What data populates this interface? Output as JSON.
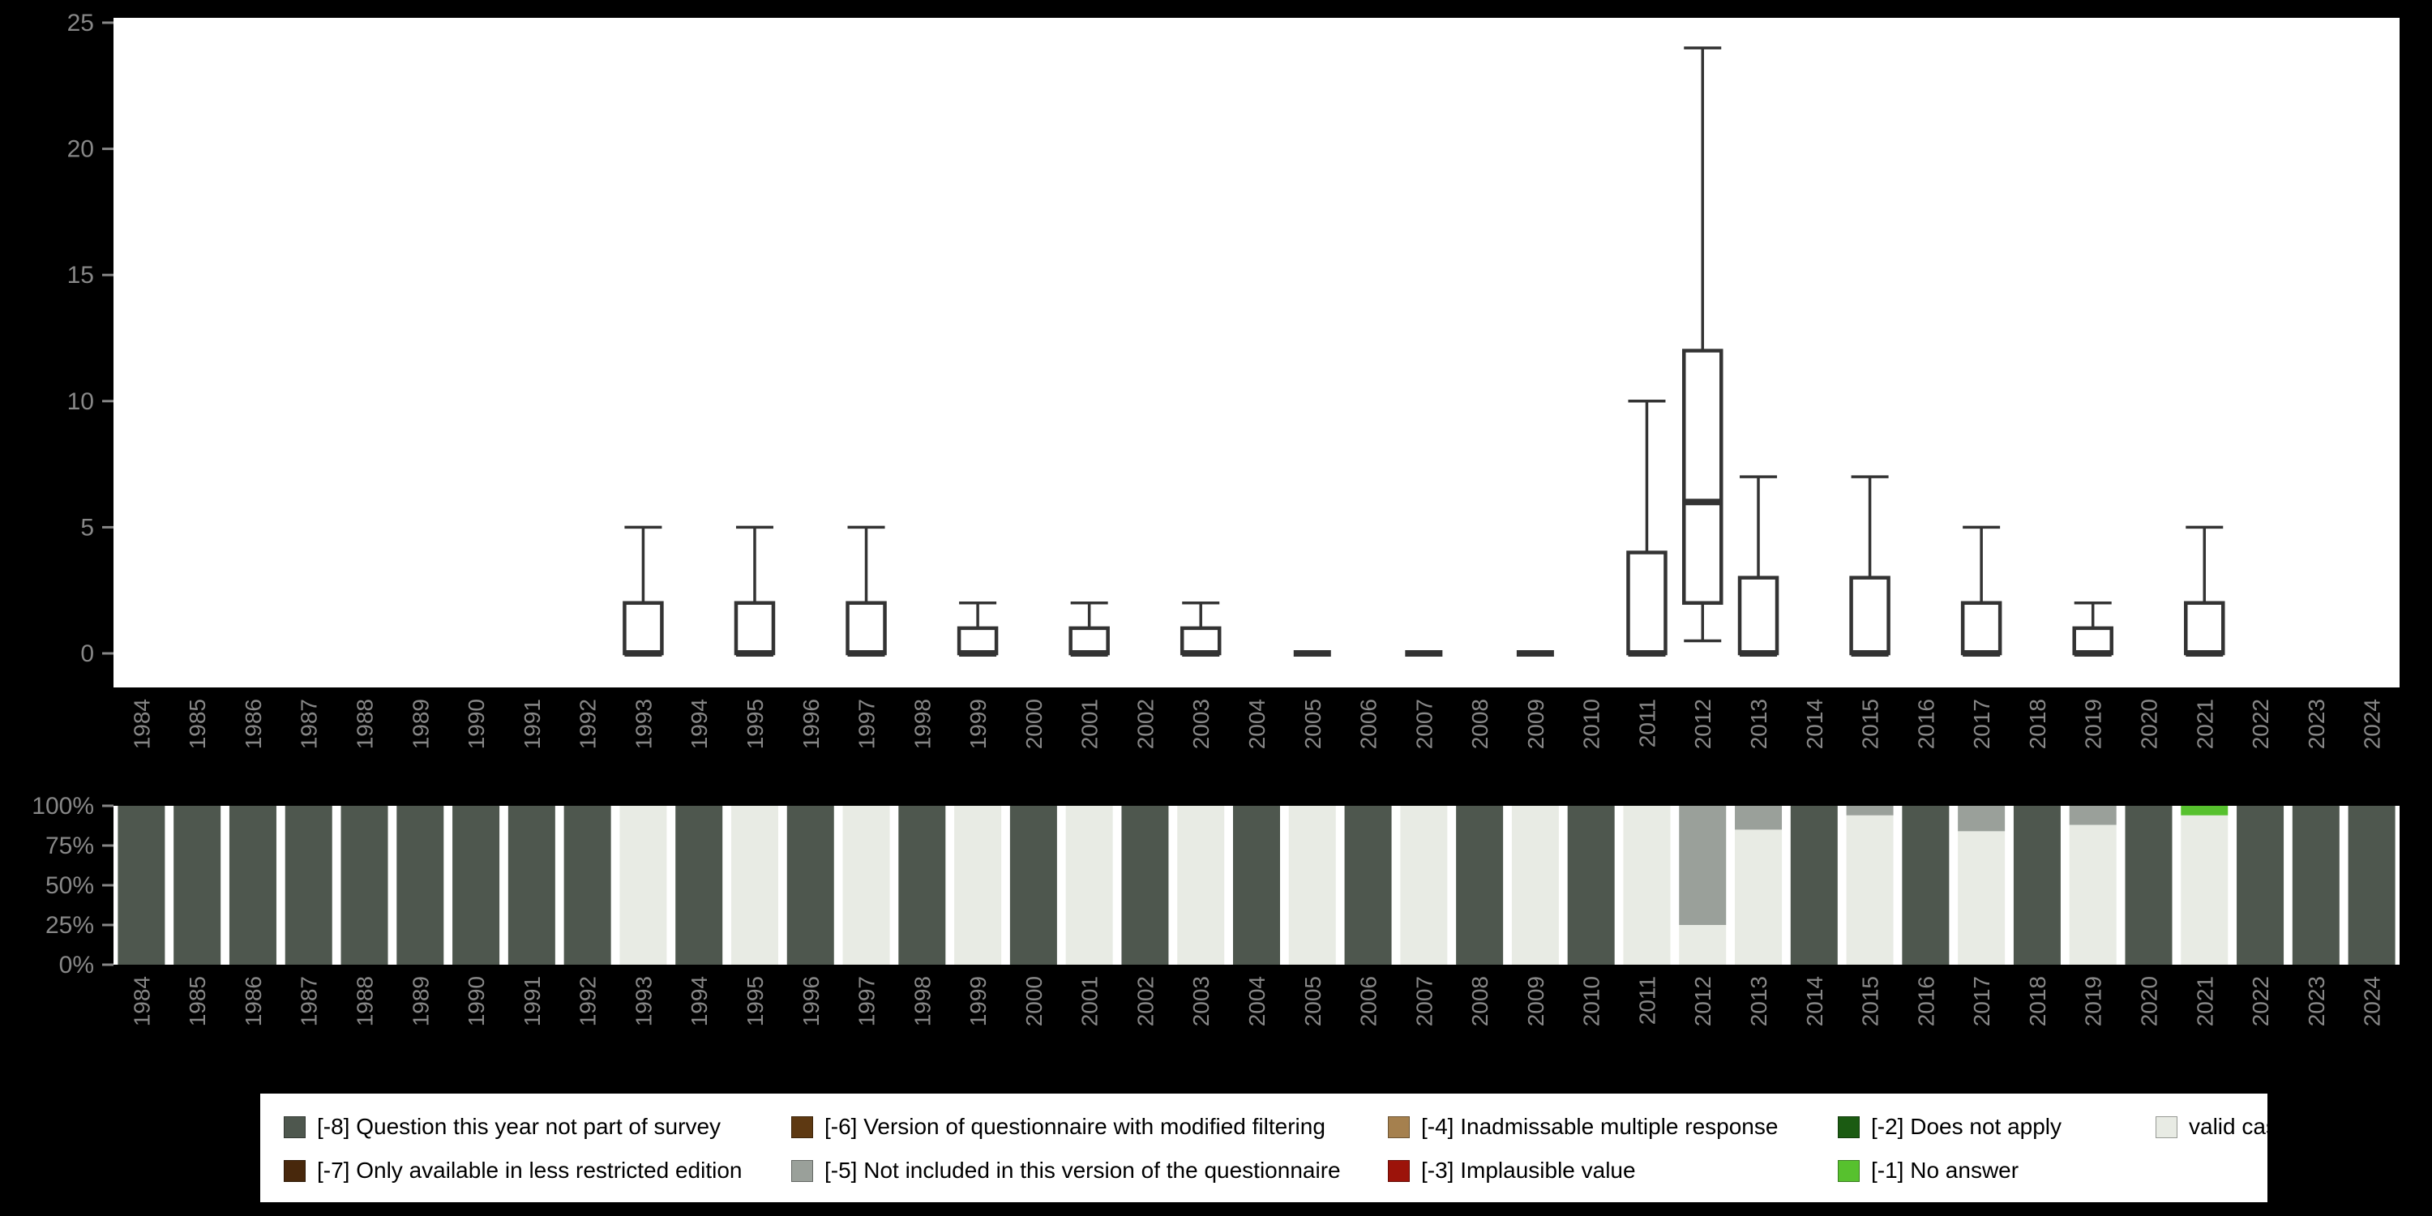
{
  "page": {
    "background": "#000000",
    "panel_background": "#ffffff"
  },
  "colors": {
    "axis_text": "#878787",
    "box_stroke": "#333333",
    "categories": {
      "-8": "#4e574e",
      "-7": "#48280c",
      "-6": "#5e3912",
      "-5": "#9aa09a",
      "-4": "#a5804e",
      "-3": "#9c130a",
      "-2": "#1b5b12",
      "-1": "#57c12e",
      "valid": "#e8ebe4"
    }
  },
  "chart_data": [
    {
      "type": "boxplot",
      "title": "",
      "xlabel": "",
      "ylabel": "",
      "ylim": [
        0,
        25
      ],
      "yticks": [
        0,
        5,
        10,
        15,
        20,
        25
      ],
      "grid": false,
      "x_categories": [
        "1984",
        "1985",
        "1986",
        "1987",
        "1988",
        "1989",
        "1990",
        "1991",
        "1992",
        "1993",
        "1994",
        "1995",
        "1996",
        "1997",
        "1998",
        "1999",
        "2000",
        "2001",
        "2002",
        "2003",
        "2004",
        "2005",
        "2006",
        "2007",
        "2008",
        "2009",
        "2010",
        "2011",
        "2012",
        "2013",
        "2014",
        "2015",
        "2016",
        "2017",
        "2018",
        "2019",
        "2020",
        "2021",
        "2022",
        "2023",
        "2024"
      ],
      "boxes": [
        {
          "year": "1993",
          "q1": 0,
          "median": 0,
          "q3": 2,
          "whisker_low": 0,
          "whisker_high": 5
        },
        {
          "year": "1995",
          "q1": 0,
          "median": 0,
          "q3": 2,
          "whisker_low": 0,
          "whisker_high": 5
        },
        {
          "year": "1997",
          "q1": 0,
          "median": 0,
          "q3": 2,
          "whisker_low": 0,
          "whisker_high": 5
        },
        {
          "year": "1999",
          "q1": 0,
          "median": 0,
          "q3": 1,
          "whisker_low": 0,
          "whisker_high": 2
        },
        {
          "year": "2001",
          "q1": 0,
          "median": 0,
          "q3": 1,
          "whisker_low": 0,
          "whisker_high": 2
        },
        {
          "year": "2003",
          "q1": 0,
          "median": 0,
          "q3": 1,
          "whisker_low": 0,
          "whisker_high": 2
        },
        {
          "year": "2005",
          "q1": 0,
          "median": 0,
          "q3": 0,
          "whisker_low": 0,
          "whisker_high": 0
        },
        {
          "year": "2007",
          "q1": 0,
          "median": 0,
          "q3": 0,
          "whisker_low": 0,
          "whisker_high": 0
        },
        {
          "year": "2009",
          "q1": 0,
          "median": 0,
          "q3": 0,
          "whisker_low": 0,
          "whisker_high": 0
        },
        {
          "year": "2011",
          "q1": 0,
          "median": 0,
          "q3": 4,
          "whisker_low": 0,
          "whisker_high": 10
        },
        {
          "year": "2012",
          "q1": 2,
          "median": 6,
          "q3": 12,
          "whisker_low": 0.5,
          "whisker_high": 24
        },
        {
          "year": "2013",
          "q1": 0,
          "median": 0,
          "q3": 3,
          "whisker_low": 0,
          "whisker_high": 7
        },
        {
          "year": "2015",
          "q1": 0,
          "median": 0,
          "q3": 3,
          "whisker_low": 0,
          "whisker_high": 7
        },
        {
          "year": "2017",
          "q1": 0,
          "median": 0,
          "q3": 2,
          "whisker_low": 0,
          "whisker_high": 5
        },
        {
          "year": "2019",
          "q1": 0,
          "median": 0,
          "q3": 1,
          "whisker_low": 0,
          "whisker_high": 2
        },
        {
          "year": "2021",
          "q1": 0,
          "median": 0,
          "q3": 2,
          "whisker_low": 0,
          "whisker_high": 5
        }
      ]
    },
    {
      "type": "stacked-bar-percent",
      "title": "",
      "xlabel": "",
      "ylabel": "",
      "ylim": [
        0,
        100
      ],
      "yticks": [
        {
          "pct": 0,
          "label": "0%"
        },
        {
          "pct": 25,
          "label": "25%"
        },
        {
          "pct": 50,
          "label": "50%"
        },
        {
          "pct": 75,
          "label": "75%"
        },
        {
          "pct": 100,
          "label": "100%"
        }
      ],
      "x_categories": [
        "1984",
        "1985",
        "1986",
        "1987",
        "1988",
        "1989",
        "1990",
        "1991",
        "1992",
        "1993",
        "1994",
        "1995",
        "1996",
        "1997",
        "1998",
        "1999",
        "2000",
        "2001",
        "2002",
        "2003",
        "2004",
        "2005",
        "2006",
        "2007",
        "2008",
        "2009",
        "2010",
        "2011",
        "2012",
        "2013",
        "2014",
        "2015",
        "2016",
        "2017",
        "2018",
        "2019",
        "2020",
        "2021",
        "2022",
        "2023",
        "2024"
      ],
      "bars": [
        {
          "year": "1984",
          "segments": [
            {
              "key": "-8",
              "pct": 100
            }
          ]
        },
        {
          "year": "1985",
          "segments": [
            {
              "key": "-8",
              "pct": 100
            }
          ]
        },
        {
          "year": "1986",
          "segments": [
            {
              "key": "-8",
              "pct": 100
            }
          ]
        },
        {
          "year": "1987",
          "segments": [
            {
              "key": "-8",
              "pct": 100
            }
          ]
        },
        {
          "year": "1988",
          "segments": [
            {
              "key": "-8",
              "pct": 100
            }
          ]
        },
        {
          "year": "1989",
          "segments": [
            {
              "key": "-8",
              "pct": 100
            }
          ]
        },
        {
          "year": "1990",
          "segments": [
            {
              "key": "-8",
              "pct": 100
            }
          ]
        },
        {
          "year": "1991",
          "segments": [
            {
              "key": "-8",
              "pct": 100
            }
          ]
        },
        {
          "year": "1992",
          "segments": [
            {
              "key": "-8",
              "pct": 100
            }
          ]
        },
        {
          "year": "1993",
          "segments": [
            {
              "key": "valid",
              "pct": 100
            }
          ]
        },
        {
          "year": "1994",
          "segments": [
            {
              "key": "-8",
              "pct": 100
            }
          ]
        },
        {
          "year": "1995",
          "segments": [
            {
              "key": "valid",
              "pct": 100
            }
          ]
        },
        {
          "year": "1996",
          "segments": [
            {
              "key": "-8",
              "pct": 100
            }
          ]
        },
        {
          "year": "1997",
          "segments": [
            {
              "key": "valid",
              "pct": 100
            }
          ]
        },
        {
          "year": "1998",
          "segments": [
            {
              "key": "-8",
              "pct": 100
            }
          ]
        },
        {
          "year": "1999",
          "segments": [
            {
              "key": "valid",
              "pct": 100
            }
          ]
        },
        {
          "year": "2000",
          "segments": [
            {
              "key": "-8",
              "pct": 100
            }
          ]
        },
        {
          "year": "2001",
          "segments": [
            {
              "key": "valid",
              "pct": 100
            }
          ]
        },
        {
          "year": "2002",
          "segments": [
            {
              "key": "-8",
              "pct": 100
            }
          ]
        },
        {
          "year": "2003",
          "segments": [
            {
              "key": "valid",
              "pct": 100
            }
          ]
        },
        {
          "year": "2004",
          "segments": [
            {
              "key": "-8",
              "pct": 100
            }
          ]
        },
        {
          "year": "2005",
          "segments": [
            {
              "key": "valid",
              "pct": 100
            }
          ]
        },
        {
          "year": "2006",
          "segments": [
            {
              "key": "-8",
              "pct": 100
            }
          ]
        },
        {
          "year": "2007",
          "segments": [
            {
              "key": "valid",
              "pct": 100
            }
          ]
        },
        {
          "year": "2008",
          "segments": [
            {
              "key": "-8",
              "pct": 100
            }
          ]
        },
        {
          "year": "2009",
          "segments": [
            {
              "key": "valid",
              "pct": 100
            }
          ]
        },
        {
          "year": "2010",
          "segments": [
            {
              "key": "-8",
              "pct": 100
            }
          ]
        },
        {
          "year": "2011",
          "segments": [
            {
              "key": "valid",
              "pct": 100
            }
          ]
        },
        {
          "year": "2012",
          "segments": [
            {
              "key": "valid",
              "pct": 25
            },
            {
              "key": "-5",
              "pct": 75
            }
          ]
        },
        {
          "year": "2013",
          "segments": [
            {
              "key": "valid",
              "pct": 85
            },
            {
              "key": "-5",
              "pct": 15
            }
          ]
        },
        {
          "year": "2014",
          "segments": [
            {
              "key": "-8",
              "pct": 100
            }
          ]
        },
        {
          "year": "2015",
          "segments": [
            {
              "key": "valid",
              "pct": 94
            },
            {
              "key": "-5",
              "pct": 6
            }
          ]
        },
        {
          "year": "2016",
          "segments": [
            {
              "key": "-8",
              "pct": 100
            }
          ]
        },
        {
          "year": "2017",
          "segments": [
            {
              "key": "valid",
              "pct": 84
            },
            {
              "key": "-5",
              "pct": 16
            }
          ]
        },
        {
          "year": "2018",
          "segments": [
            {
              "key": "-8",
              "pct": 100
            }
          ]
        },
        {
          "year": "2019",
          "segments": [
            {
              "key": "valid",
              "pct": 88
            },
            {
              "key": "-5",
              "pct": 12
            }
          ]
        },
        {
          "year": "2020",
          "segments": [
            {
              "key": "-8",
              "pct": 100
            }
          ]
        },
        {
          "year": "2021",
          "segments": [
            {
              "key": "valid",
              "pct": 94
            },
            {
              "key": "-1",
              "pct": 6
            }
          ]
        },
        {
          "year": "2022",
          "segments": [
            {
              "key": "-8",
              "pct": 100
            }
          ]
        },
        {
          "year": "2023",
          "segments": [
            {
              "key": "-8",
              "pct": 100
            }
          ]
        },
        {
          "year": "2024",
          "segments": [
            {
              "key": "-8",
              "pct": 100
            }
          ]
        }
      ]
    }
  ],
  "legend": {
    "items": [
      {
        "key": "-8",
        "label": "[-8] Question this year not part of survey"
      },
      {
        "key": "-6",
        "label": "[-6] Version of questionnaire with modified filtering"
      },
      {
        "key": "-4",
        "label": "[-4] Inadmissable multiple response"
      },
      {
        "key": "-2",
        "label": "[-2] Does not apply"
      },
      {
        "key": "valid",
        "label": "valid cases"
      },
      {
        "key": "-7",
        "label": "[-7] Only available in less restricted edition"
      },
      {
        "key": "-5",
        "label": "[-5] Not included in this version of the questionnaire"
      },
      {
        "key": "-3",
        "label": "[-3] Implausible value"
      },
      {
        "key": "-1",
        "label": "[-1] No answer"
      }
    ]
  }
}
